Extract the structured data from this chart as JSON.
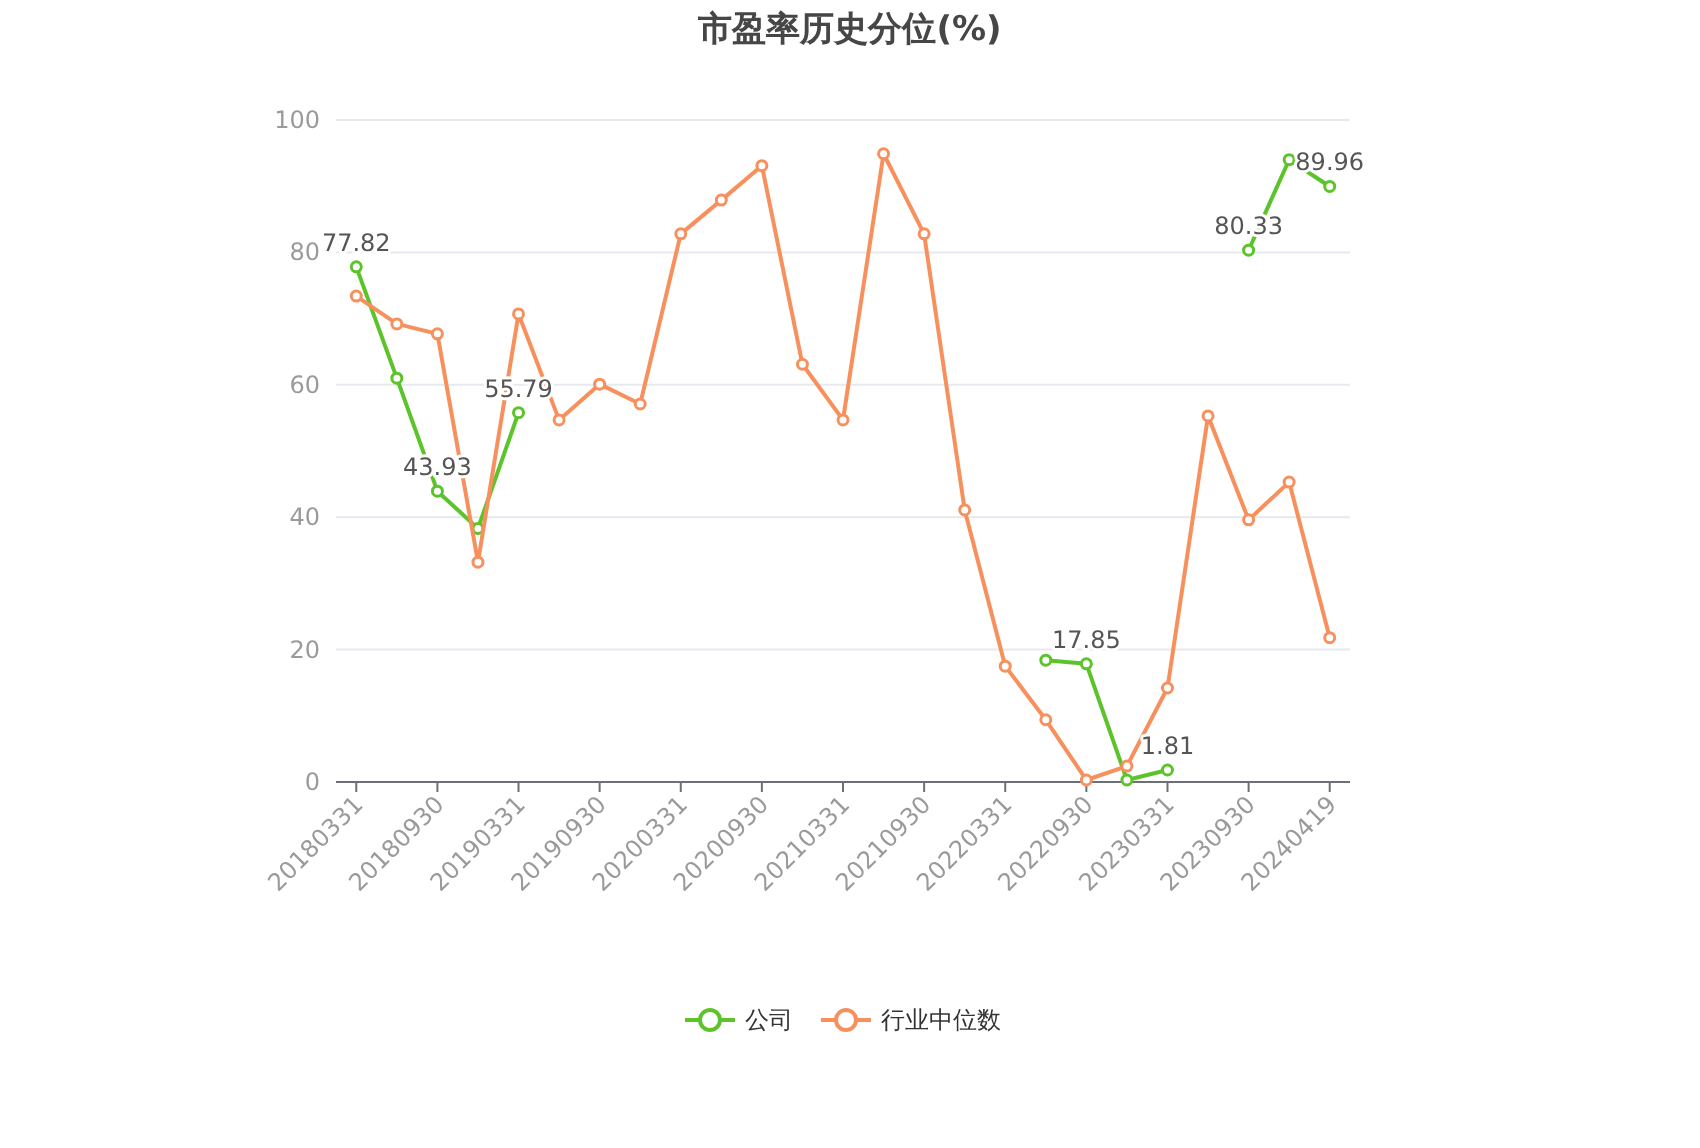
{
  "chart_data": {
    "type": "line",
    "title": "市盈率历史分位(%)",
    "categories": [
      "20180331",
      null,
      "20180930",
      null,
      "20190331",
      null,
      "20190930",
      null,
      "20200331",
      null,
      "20200930",
      null,
      "20210331",
      null,
      "20210930",
      null,
      "20220331",
      null,
      "20220930",
      null,
      "20230331",
      null,
      "20230930",
      null,
      "20240419"
    ],
    "series": [
      {
        "name": "公司",
        "color": "#5cc42a",
        "values": [
          77.82,
          61.0,
          43.93,
          38.3,
          55.79,
          null,
          null,
          null,
          null,
          null,
          null,
          null,
          null,
          null,
          null,
          null,
          null,
          18.4,
          17.85,
          0.3,
          1.81,
          null,
          80.33,
          94.0,
          89.96
        ],
        "value_labels": [
          "77.82",
          null,
          "43.93",
          null,
          "55.79",
          null,
          null,
          null,
          null,
          null,
          null,
          null,
          null,
          null,
          null,
          null,
          null,
          null,
          "17.85",
          null,
          "1.81",
          null,
          "80.33",
          null,
          "89.96"
        ]
      },
      {
        "name": "行业中位数",
        "color": "#f7905c",
        "values": [
          73.4,
          69.2,
          67.7,
          33.2,
          70.7,
          54.7,
          60.1,
          57.1,
          82.8,
          87.9,
          93.1,
          63.1,
          54.7,
          94.9,
          82.8,
          41.1,
          17.5,
          9.4,
          0.3,
          2.4,
          14.2,
          55.3,
          39.6,
          45.3,
          21.8
        ]
      }
    ],
    "ylim": [
      0,
      100
    ],
    "yticks": [
      0,
      20,
      40,
      60,
      80,
      100
    ],
    "grid": "y",
    "legend": "bottom",
    "marker": "circle",
    "line_style": "solid"
  }
}
